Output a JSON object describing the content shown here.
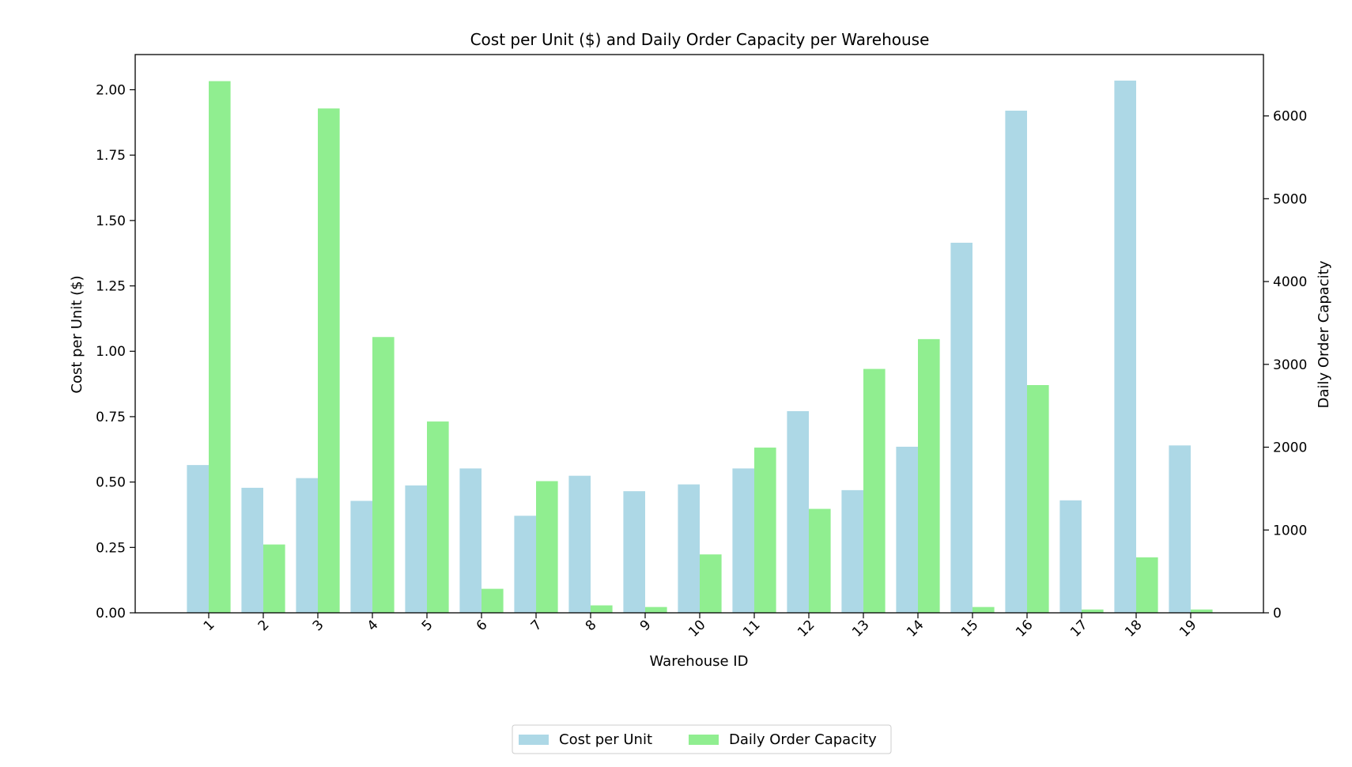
{
  "chart_data": {
    "type": "bar",
    "title": "Cost per Unit ($) and Daily Order Capacity per Warehouse",
    "xlabel": "Warehouse ID",
    "categories": [
      "1",
      "2",
      "3",
      "4",
      "5",
      "6",
      "7",
      "8",
      "9",
      "10",
      "11",
      "12",
      "13",
      "14",
      "15",
      "16",
      "17",
      "18",
      "19"
    ],
    "series": [
      {
        "name": "Cost per Unit",
        "axis": "left",
        "color": "#add8e6",
        "values": [
          0.565,
          0.478,
          0.515,
          0.428,
          0.487,
          0.552,
          0.371,
          0.524,
          0.465,
          0.491,
          0.552,
          0.771,
          0.469,
          0.635,
          1.415,
          1.92,
          0.43,
          2.035,
          0.64
        ]
      },
      {
        "name": "Daily Order Capacity",
        "axis": "right",
        "color": "#90ee90",
        "values": [
          6420,
          825,
          6090,
          3330,
          2310,
          290,
          1590,
          90,
          70,
          705,
          1995,
          1255,
          2945,
          3305,
          70,
          2750,
          40,
          670,
          40
        ]
      }
    ],
    "y_left": {
      "label": "Cost per Unit ($)",
      "range": [
        0,
        2.1345
      ],
      "ticks": [
        "0.00",
        "0.25",
        "0.50",
        "0.75",
        "1.00",
        "1.25",
        "1.50",
        "1.75",
        "2.00"
      ]
    },
    "y_right": {
      "label": "Daily Order Capacity",
      "range": [
        0,
        6741
      ],
      "ticks": [
        "0",
        "1000",
        "2000",
        "3000",
        "4000",
        "5000",
        "6000"
      ]
    },
    "grid": false,
    "legend": {
      "position": "bottom-center",
      "entries": [
        "Cost per Unit",
        "Daily Order Capacity"
      ]
    }
  }
}
